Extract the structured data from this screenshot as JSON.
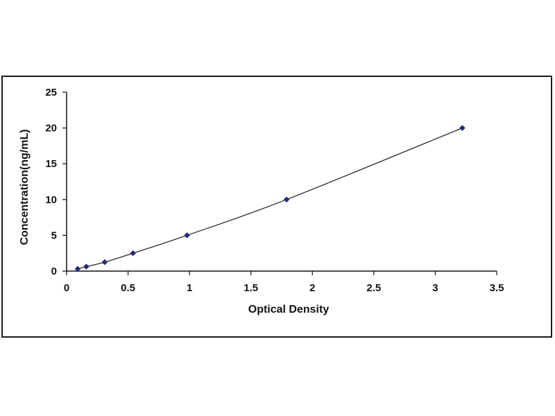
{
  "chart_data": {
    "type": "scatter",
    "title": "",
    "xlabel": "Optical Density",
    "ylabel": "Concentration(ng/mL)",
    "xlim": [
      0,
      3.5
    ],
    "ylim": [
      0,
      25
    ],
    "xticks": [
      "0",
      "0.5",
      "1",
      "1.5",
      "2",
      "2.5",
      "3",
      "3.5"
    ],
    "yticks": [
      "0",
      "5",
      "10",
      "15",
      "20",
      "25"
    ],
    "grid": false,
    "legend": "none",
    "series": [
      {
        "marker": "diamond",
        "line": "smooth-fit",
        "x": [
          0.09,
          0.16,
          0.31,
          0.54,
          0.98,
          1.79,
          3.22
        ],
        "y": [
          0.31,
          0.625,
          1.25,
          2.5,
          5,
          10,
          20
        ]
      }
    ],
    "colors": {
      "marker": "#1f2a78",
      "line": "#2a2a2a",
      "axis": "#111111"
    }
  }
}
